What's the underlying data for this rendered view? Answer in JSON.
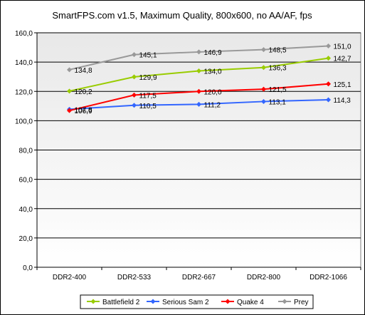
{
  "chart_data": {
    "type": "line",
    "title": "SmartFPS.com v1.5, Maximum Quality, 800x600, no AA/AF, fps",
    "xlabel": "",
    "ylabel": "",
    "categories": [
      "DDR2-400",
      "DDR2-533",
      "DDR2-667",
      "DDR2-800",
      "DDR2-1066"
    ],
    "ylim": [
      0,
      160
    ],
    "yticks": [
      "0,0",
      "20,0",
      "40,0",
      "60,0",
      "80,0",
      "100,0",
      "120,0",
      "140,0",
      "160,0"
    ],
    "grid": true,
    "legend_position": "bottom",
    "series": [
      {
        "name": "Battlefield 2",
        "color": "#99cc00",
        "values": [
          120.2,
          129.9,
          134.0,
          136.3,
          142.7
        ],
        "labels": [
          "120,2",
          "129,9",
          "134,0",
          "136,3",
          "142,7"
        ]
      },
      {
        "name": "Serious Sam 2",
        "color": "#3366ff",
        "values": [
          107.8,
          110.5,
          111.2,
          113.1,
          114.3
        ],
        "labels": [
          "107,8",
          "110,5",
          "111,2",
          "113,1",
          "114,3"
        ]
      },
      {
        "name": "Quake 4",
        "color": "#ff0000",
        "values": [
          106.9,
          117.5,
          120.0,
          121.5,
          125.1
        ],
        "labels": [
          "106,9",
          "117,5",
          "120,0",
          "121,5",
          "125,1"
        ]
      },
      {
        "name": "Prey",
        "color": "#999999",
        "values": [
          134.8,
          145.1,
          146.9,
          148.5,
          151.0
        ],
        "labels": [
          "134,8",
          "145,1",
          "146,9",
          "148,5",
          "151,0"
        ]
      }
    ]
  }
}
